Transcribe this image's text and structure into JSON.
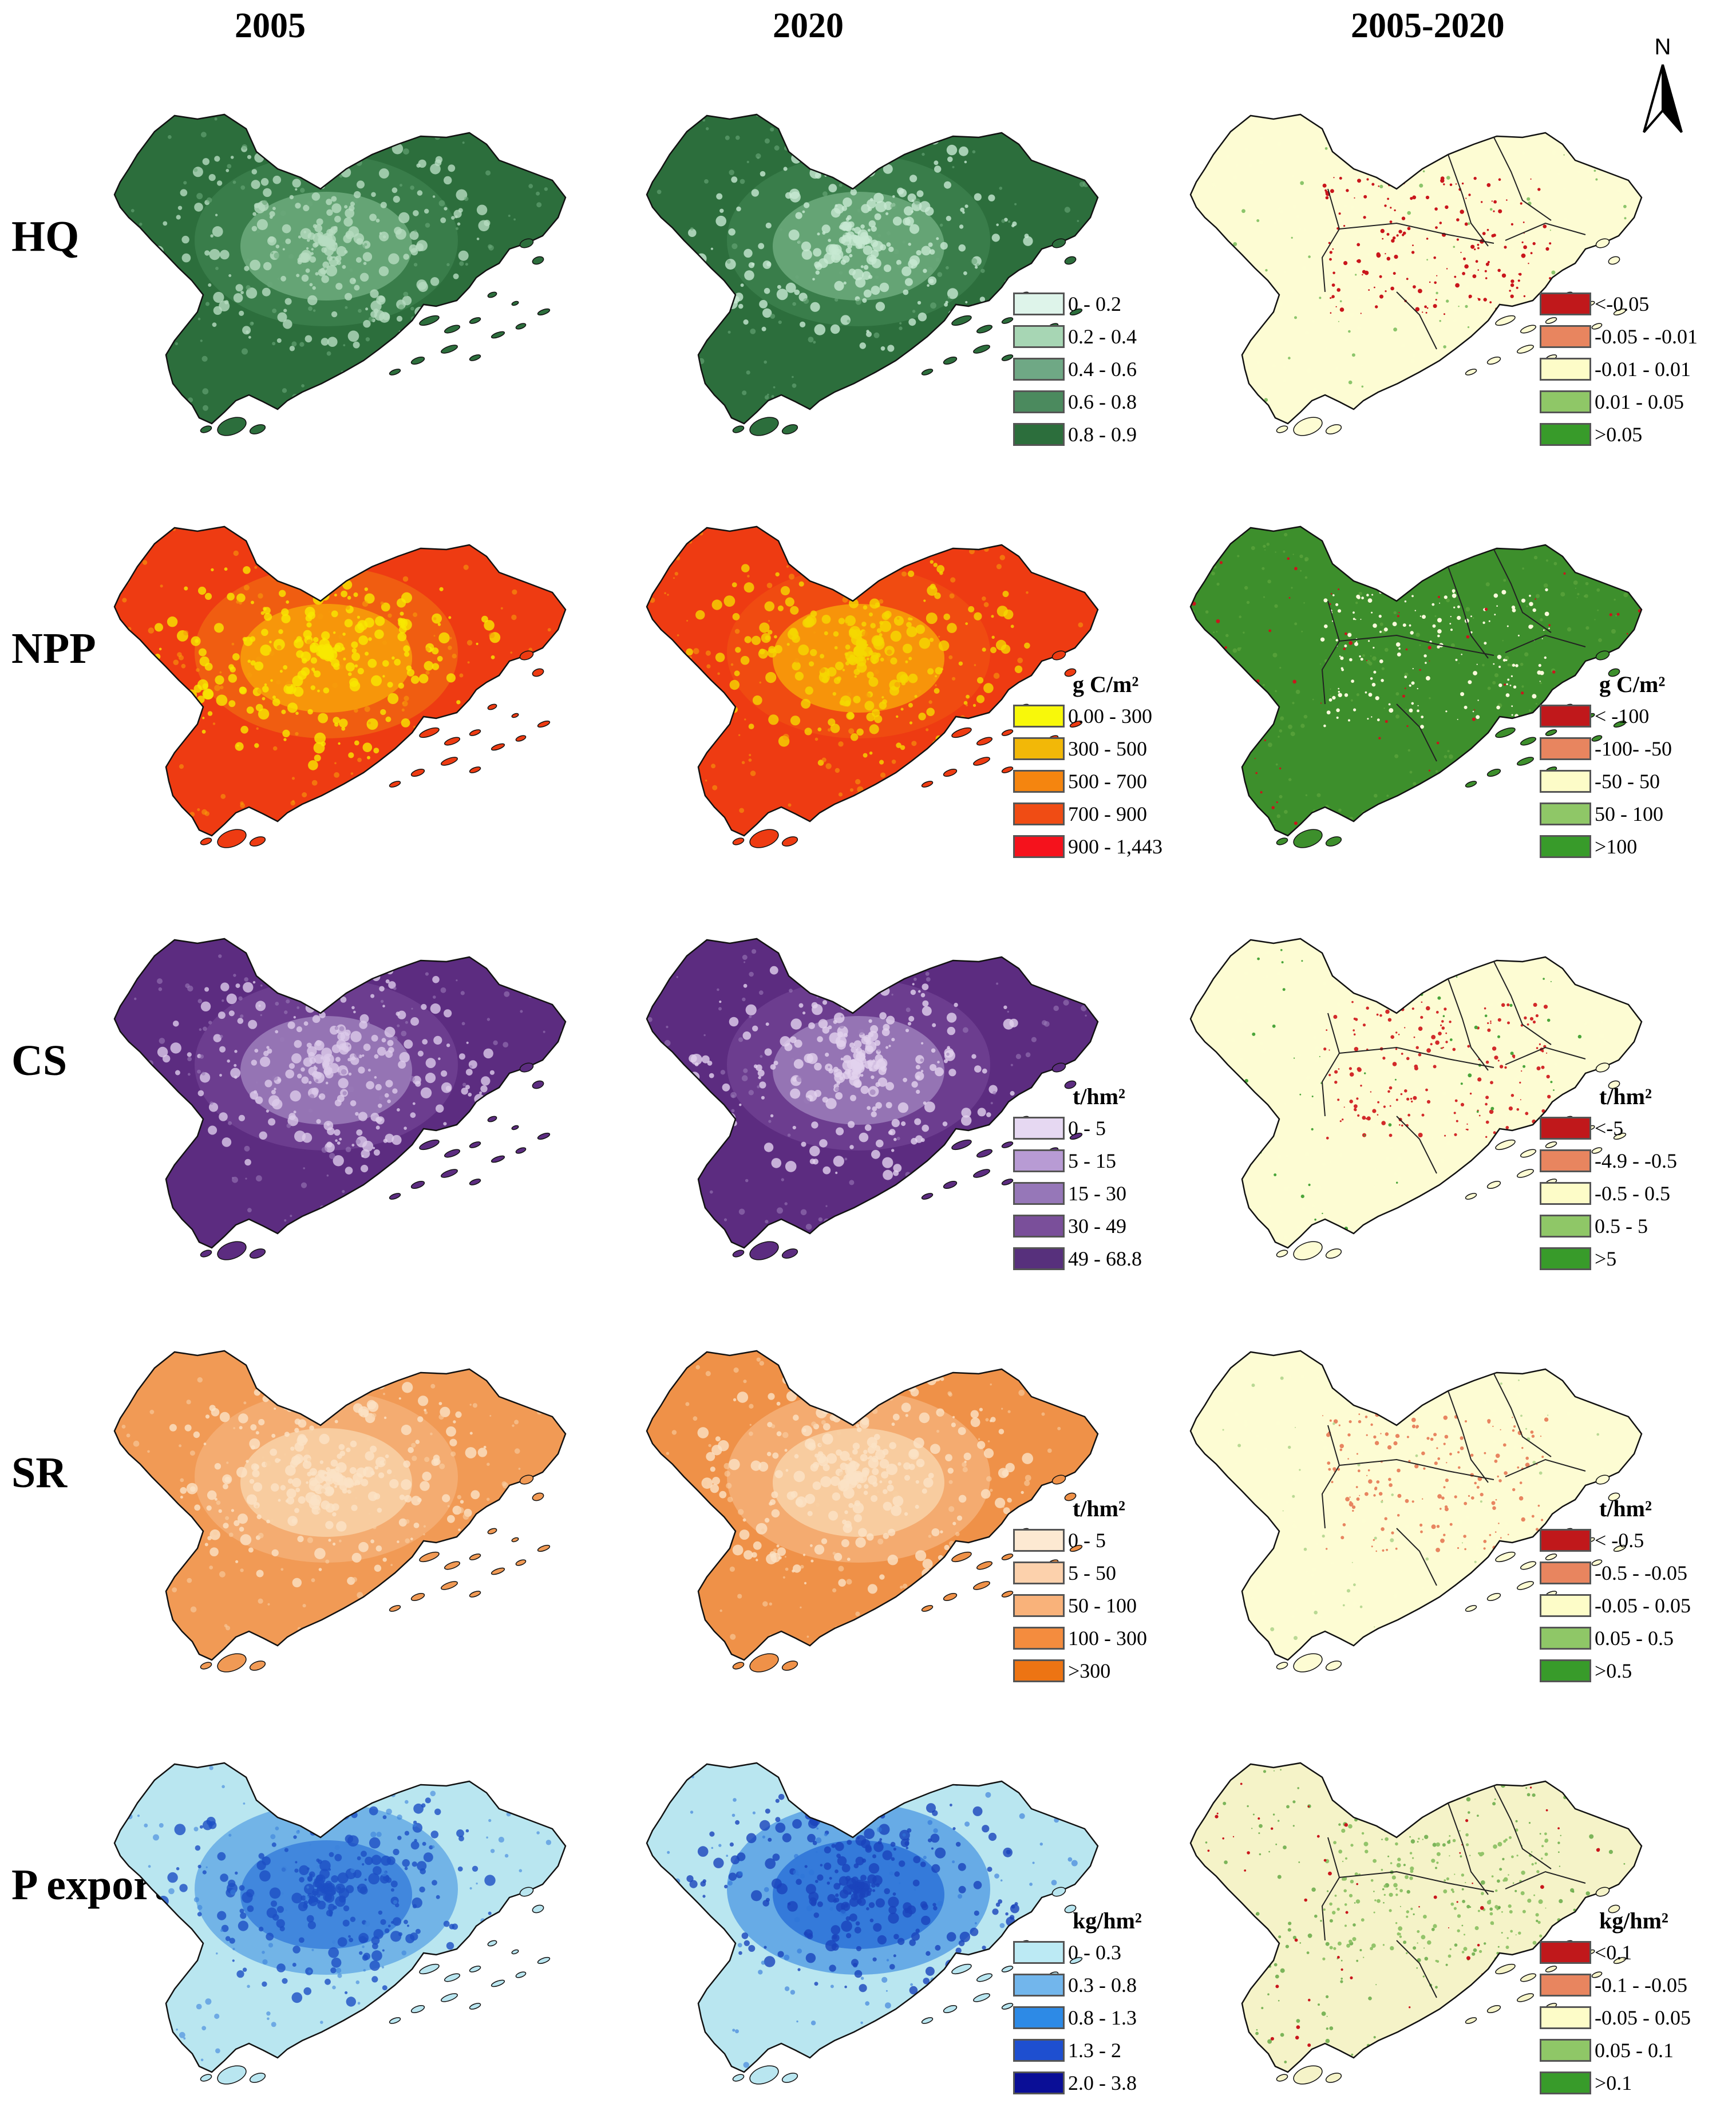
{
  "columns": [
    "2005",
    "2020",
    "2005-2020"
  ],
  "north_label": "N",
  "rows": [
    {
      "label": "HQ",
      "map_colors": {
        "2005": [
          "#2c6e3c",
          "#3b7e4b",
          "#6aa87a",
          "#b7dcc1"
        ],
        "2020": [
          "#2c6e3c",
          "#3b7e4b",
          "#6aa87a",
          "#c7e8d2"
        ],
        "change": [
          "#fdfcd3",
          "#fdfcd3",
          "#c9161c",
          "#8cc56b"
        ]
      },
      "legend": {
        "unit": "",
        "items": [
          {
            "label": "0 - 0.2",
            "color": "#def4ea"
          },
          {
            "label": "0.2 - 0.4",
            "color": "#a7d6b4"
          },
          {
            "label": "0.4 - 0.6",
            "color": "#6fa885"
          },
          {
            "label": "0.6 - 0.8",
            "color": "#4b8a5e"
          },
          {
            "label": "0.8 - 0.9",
            "color": "#2c6e3c"
          }
        ]
      },
      "change_legend": {
        "unit": "",
        "items": [
          {
            "label": "<-0.05",
            "color": "#c0181b"
          },
          {
            "label": "-0.05 - -0.01",
            "color": "#e8855f"
          },
          {
            "label": "-0.01 - 0.01",
            "color": "#fdfcc8"
          },
          {
            "label": "0.01 - 0.05",
            "color": "#8fc767"
          },
          {
            "label": ">0.05",
            "color": "#389b2a"
          }
        ]
      }
    },
    {
      "label": "NPP",
      "map_colors": {
        "2005": [
          "#ee3b12",
          "#f06212",
          "#f79c0a",
          "#f7e800"
        ],
        "2020": [
          "#ee3b12",
          "#f04e12",
          "#f79c0a",
          "#f5d800"
        ],
        "change": [
          "#3d8f2c",
          "#5aa33c",
          "#fbfadc",
          "#c9161c"
        ]
      },
      "legend": {
        "unit": "g C/m²",
        "items": [
          {
            "label": "0.00 - 300",
            "color": "#f8f80a"
          },
          {
            "label": "300 - 500",
            "color": "#f2b808"
          },
          {
            "label": "500 - 700",
            "color": "#f5850f"
          },
          {
            "label": "700 - 900",
            "color": "#f04c14"
          },
          {
            "label": "900 - 1,443",
            "color": "#f5121c"
          }
        ]
      },
      "change_legend": {
        "unit": "g C/m²",
        "items": [
          {
            "label": "< -100",
            "color": "#c0181b"
          },
          {
            "label": "-100- -50",
            "color": "#e8855f"
          },
          {
            "label": "-50 - 50",
            "color": "#fdfcc8"
          },
          {
            "label": "50 - 100",
            "color": "#8fc767"
          },
          {
            "label": ">100",
            "color": "#389b2a"
          }
        ]
      }
    },
    {
      "label": "CS",
      "map_colors": {
        "2005": [
          "#5c2c80",
          "#6e3f90",
          "#9a7ab8",
          "#dccaea"
        ],
        "2020": [
          "#5c2c80",
          "#6e3f90",
          "#9a7ab8",
          "#e2d2ee"
        ],
        "change": [
          "#fdfcd3",
          "#fdfcd3",
          "#d22a2a",
          "#4aa53a"
        ]
      },
      "legend": {
        "unit": "t/hm²",
        "items": [
          {
            "label": "0 - 5",
            "color": "#e6d8f2"
          },
          {
            "label": "5 - 15",
            "color": "#b89bd4"
          },
          {
            "label": "15 - 30",
            "color": "#9677b8"
          },
          {
            "label": "30 - 49",
            "color": "#7a4f9a"
          },
          {
            "label": "49 - 68.8",
            "color": "#57307c"
          }
        ]
      },
      "change_legend": {
        "unit": "t/hm²",
        "items": [
          {
            "label": "<-5",
            "color": "#c0181b"
          },
          {
            "label": "-4.9 - -0.5",
            "color": "#e8855f"
          },
          {
            "label": "-0.5 - 0.5",
            "color": "#fdfcc8"
          },
          {
            "label": "0.5 - 5",
            "color": "#8fc767"
          },
          {
            "label": ">5",
            "color": "#389b2a"
          }
        ]
      }
    },
    {
      "label": "SR",
      "map_colors": {
        "2005": [
          "#f19a55",
          "#f4ae74",
          "#f8cfa4",
          "#fbe2c6"
        ],
        "2020": [
          "#ef9148",
          "#f4ae74",
          "#f8cfa4",
          "#fbe2c6"
        ],
        "change": [
          "#fdfcd3",
          "#fdfcd3",
          "#e88560",
          "#b9d994"
        ]
      },
      "legend": {
        "unit": "t/hm²",
        "items": [
          {
            "label": "0 - 5",
            "color": "#fde9d2"
          },
          {
            "label": "5 - 50",
            "color": "#fcd1ac"
          },
          {
            "label": "50 - 100",
            "color": "#f9b27a"
          },
          {
            "label": "100 - 300",
            "color": "#f48c3e"
          },
          {
            "label": ">300",
            "color": "#ed7413"
          }
        ]
      },
      "change_legend": {
        "unit": "t/hm²",
        "items": [
          {
            "label": "< -0.5",
            "color": "#c0181b"
          },
          {
            "label": "-0.5 - -0.05",
            "color": "#e8855f"
          },
          {
            "label": "-0.05 - 0.05",
            "color": "#fdfcc8"
          },
          {
            "label": "0.05 - 0.5",
            "color": "#8fc767"
          },
          {
            "label": ">0.5",
            "color": "#389b2a"
          }
        ]
      }
    },
    {
      "label": "P export",
      "map_colors": {
        "2005": [
          "#b9e6f0",
          "#6aaee6",
          "#3c82dc",
          "#1d4fc4"
        ],
        "2020": [
          "#b9e6f0",
          "#5ea4e4",
          "#2f74d8",
          "#1a44bc"
        ],
        "change": [
          "#f5f3c8",
          "#5ea53e",
          "#93c46a",
          "#c9161c"
        ]
      },
      "legend": {
        "unit": "kg/hm²",
        "items": [
          {
            "label": "0 - 0.3",
            "color": "#bceaf4"
          },
          {
            "label": "0.3 - 0.8",
            "color": "#72b6ec"
          },
          {
            "label": "0.8 - 1.3",
            "color": "#2d8ae6"
          },
          {
            "label": "1.3 - 2",
            "color": "#1e4fd0"
          },
          {
            "label": "2.0 - 3.8",
            "color": "#0a0e96"
          }
        ]
      },
      "change_legend": {
        "unit": "kg/hm²",
        "items": [
          {
            "label": "<0.1",
            "color": "#c0181b"
          },
          {
            "label": "-0.1 - -0.05",
            "color": "#e8855f"
          },
          {
            "label": "-0.05 - 0.05",
            "color": "#fdfcc8"
          },
          {
            "label": "0.05 - 0.1",
            "color": "#8fc767"
          },
          {
            "label": ">0.1",
            "color": "#389b2a"
          }
        ]
      }
    }
  ]
}
